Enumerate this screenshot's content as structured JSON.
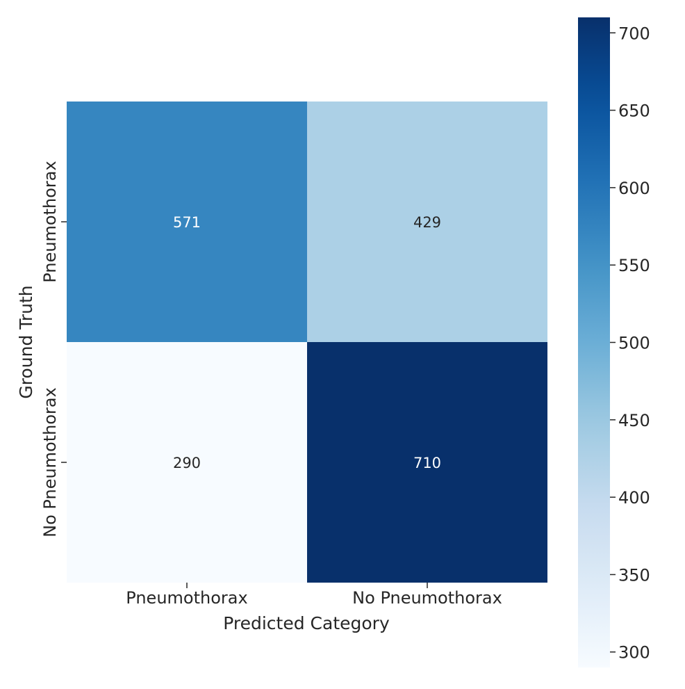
{
  "chart_data": {
    "type": "heatmap",
    "title": "",
    "xlabel": "Predicted Category",
    "ylabel": "Ground Truth",
    "x_categories": [
      "Pneumothorax",
      "No Pneumothorax"
    ],
    "y_categories": [
      "Pneumothorax",
      "No Pneumothorax"
    ],
    "values": [
      [
        571,
        429
      ],
      [
        290,
        710
      ]
    ],
    "colormap": "Blues",
    "color_range": [
      290,
      710
    ],
    "colorbar": {
      "ticks": [
        300,
        350,
        400,
        450,
        500,
        550,
        600,
        650,
        700
      ],
      "placement": "right"
    },
    "annotation_colors": {
      "dark_cell": "#ffffff",
      "light_cell": "#262626"
    }
  }
}
